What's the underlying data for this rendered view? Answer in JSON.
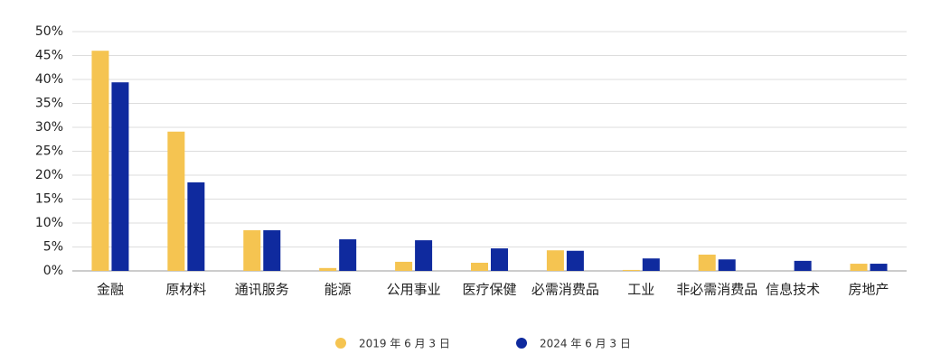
{
  "chart_data": {
    "type": "bar",
    "categories": [
      "金融",
      "原材料",
      "通讯服务",
      "能源",
      "公用事业",
      "医疗保健",
      "必需消费品",
      "工业",
      "非必需消费品",
      "信息技术",
      "房地产"
    ],
    "series": [
      {
        "name": "2019 年 6 月 3 日",
        "color": "#f5c451",
        "values": [
          46.0,
          29.1,
          8.5,
          0.6,
          1.9,
          1.7,
          4.3,
          0.2,
          3.4,
          0,
          1.5
        ]
      },
      {
        "name": "2024 年 6 月 3 日",
        "color": "#0f2a9e",
        "values": [
          39.4,
          18.5,
          8.5,
          6.6,
          6.4,
          4.7,
          4.2,
          2.6,
          2.4,
          2.1,
          1.5
        ]
      }
    ],
    "ylim": [
      0,
      50
    ],
    "yticks": [
      {
        "value": 0,
        "label": "0%"
      },
      {
        "value": 5,
        "label": "5%"
      },
      {
        "value": 10,
        "label": "10%"
      },
      {
        "value": 15,
        "label": "15%"
      },
      {
        "value": 20,
        "label": "20%"
      },
      {
        "value": 25,
        "label": "25%"
      },
      {
        "value": 30,
        "label": "30%"
      },
      {
        "value": 35,
        "label": "35%"
      },
      {
        "value": 40,
        "label": "40%"
      },
      {
        "value": 45,
        "label": "45%"
      },
      {
        "value": 50,
        "label": "50%"
      }
    ],
    "grid": true
  }
}
